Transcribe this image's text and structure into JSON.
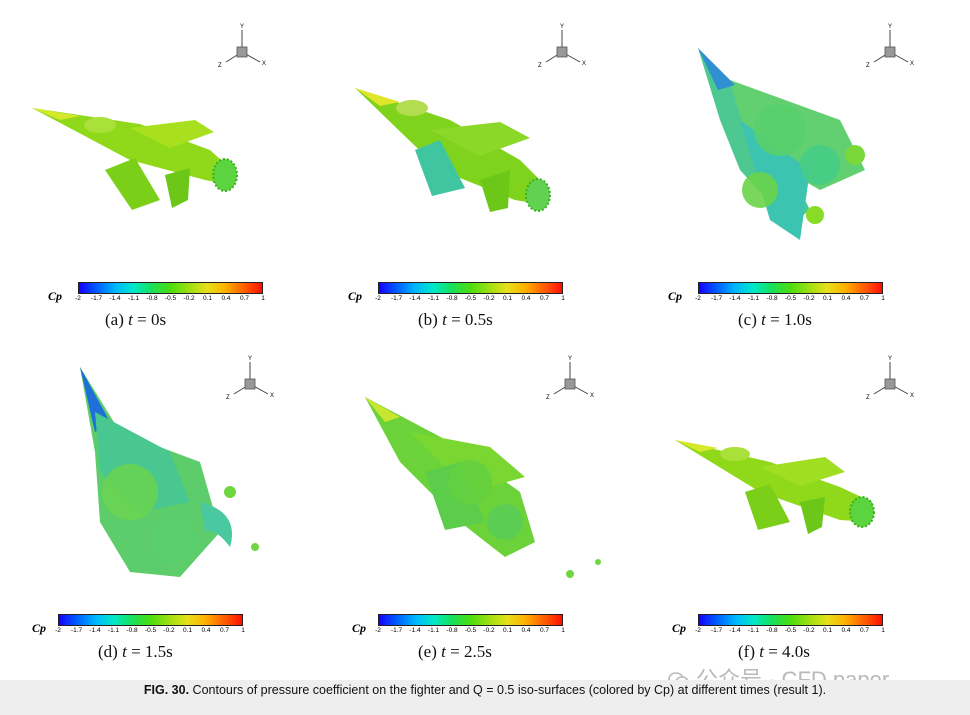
{
  "colorbar": {
    "label": "Cp",
    "ticks": [
      "-2",
      "-1.7",
      "-1.4",
      "-1.1",
      "-0.8",
      "-0.5",
      "-0.2",
      "0.1",
      "0.4",
      "0.7",
      "1"
    ],
    "colors": [
      "#1400ff",
      "#0060ff",
      "#00b8ff",
      "#00e8c8",
      "#18e05a",
      "#4cdc10",
      "#9ce010",
      "#e6e01a",
      "#ffb000",
      "#ff6000",
      "#ff1000"
    ]
  },
  "axis_labels": {
    "x": "X",
    "y": "Y",
    "z": "Z"
  },
  "panels": [
    {
      "label": "(a)",
      "t_var": "t",
      "t_value": "= 0s"
    },
    {
      "label": "(b)",
      "t_var": "t",
      "t_value": "= 0.5s"
    },
    {
      "label": "(c)",
      "t_var": "t",
      "t_value": "= 1.0s"
    },
    {
      "label": "(d)",
      "t_var": "t",
      "t_value": "= 1.5s"
    },
    {
      "label": "(e)",
      "t_var": "t",
      "t_value": "= 2.5s"
    },
    {
      "label": "(f)",
      "t_var": "t",
      "t_value": "= 4.0s"
    }
  ],
  "figure_caption": {
    "number": "FIG. 30.",
    "text": "Contours of pressure coefficient on the fighter and Q = 0.5 iso-surfaces (colored by Cp) at different times (result 1)."
  },
  "watermark": "公众号 · CFD paper"
}
